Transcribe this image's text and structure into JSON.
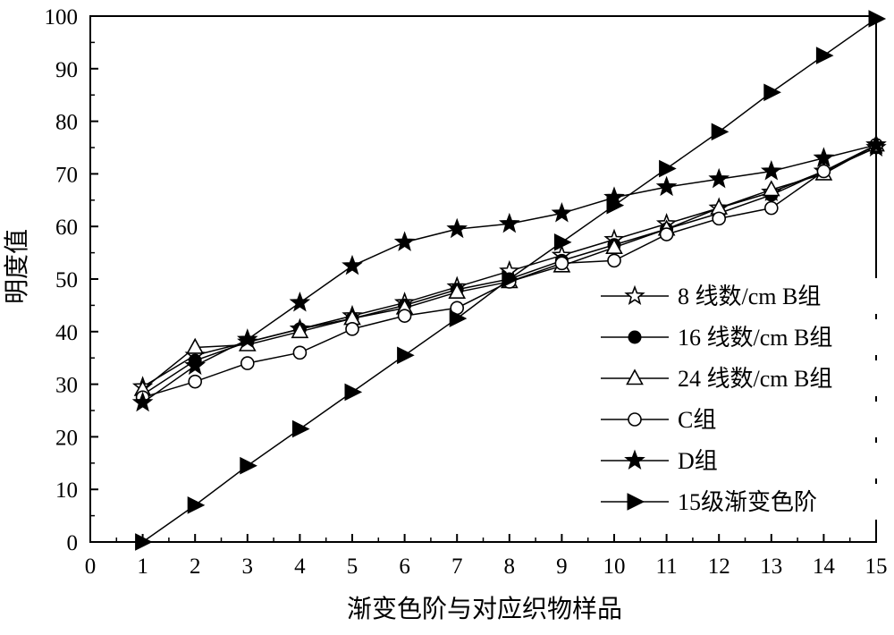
{
  "chart_data": {
    "type": "line",
    "xlabel": "渐变色阶与对应织物样品",
    "ylabel": "明度值",
    "xlim": [
      0,
      15
    ],
    "ylim": [
      0,
      100
    ],
    "x_ticks": [
      0,
      1,
      2,
      3,
      4,
      5,
      6,
      7,
      8,
      9,
      10,
      11,
      12,
      13,
      14,
      15
    ],
    "y_ticks": [
      0,
      10,
      20,
      30,
      40,
      50,
      60,
      70,
      80,
      90,
      100
    ],
    "grid": false,
    "legend_position": "right",
    "x": [
      1,
      2,
      3,
      4,
      5,
      6,
      7,
      8,
      9,
      10,
      11,
      12,
      13,
      14,
      15
    ],
    "series": [
      {
        "name": "8 线数/cm B组",
        "marker": "star-open",
        "values": [
          29.5,
          35.5,
          38,
          40.5,
          43,
          45.5,
          48.5,
          51.5,
          54.5,
          57.5,
          60.5,
          63.5,
          66.5,
          70.5,
          75
        ]
      },
      {
        "name": "16 线数/cm B组",
        "marker": "circle-filled",
        "values": [
          28,
          34.5,
          38,
          40.5,
          42.5,
          45,
          48,
          50,
          53.5,
          56.5,
          59.5,
          62.5,
          66,
          70.5,
          75
        ]
      },
      {
        "name": "24 线数/cm B组",
        "marker": "triangle-open",
        "values": [
          29,
          37,
          37.5,
          40,
          42.5,
          44.5,
          47.5,
          49.5,
          52.5,
          56,
          59.5,
          63.5,
          67,
          70,
          75.5
        ]
      },
      {
        "name": "C组",
        "marker": "circle-open",
        "values": [
          27.5,
          30.5,
          34,
          36,
          40.5,
          43,
          44.5,
          49.5,
          53,
          53.5,
          58.5,
          61.5,
          63.5,
          70.5,
          75.5
        ]
      },
      {
        "name": "D组",
        "marker": "star-filled",
        "values": [
          26.5,
          33.5,
          38.5,
          45.5,
          52.5,
          57,
          59.5,
          60.5,
          62.5,
          65.5,
          67.5,
          69,
          70.5,
          73,
          75.5
        ]
      },
      {
        "name": "15级渐变色阶",
        "marker": "triangle-right-filled",
        "values": [
          0,
          7,
          14.5,
          21.5,
          28.5,
          35.5,
          42.5,
          50,
          57,
          64,
          71,
          78,
          85.5,
          92.5,
          99.5
        ]
      }
    ]
  }
}
